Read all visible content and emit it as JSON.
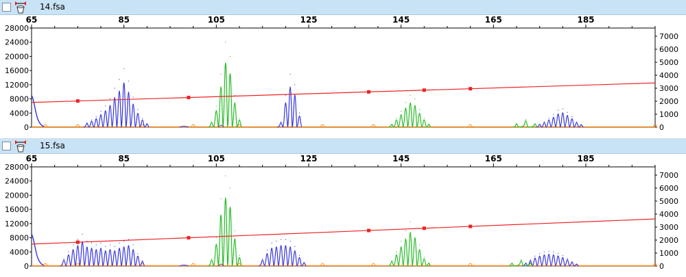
{
  "colors": {
    "blue": "#3333dd",
    "green": "#22bb22",
    "red": "#ee2222",
    "orange": "#ff8c1a",
    "titlebar": "#c9e3f6"
  },
  "icons": {
    "checkbox": "checkbox-icon",
    "tool": "sizing-tool-icon"
  },
  "panels": [
    {
      "filename": "14.fsa",
      "x_ticks": [
        "65",
        "85",
        "105",
        "125",
        "145",
        "165",
        "185"
      ],
      "left_ticks": [
        "28000",
        "24000",
        "20000",
        "16000",
        "12000",
        "8000",
        "4000",
        "0"
      ],
      "right_ticks": [
        "7000",
        "6000",
        "5000",
        "4000",
        "3000",
        "2000",
        "1000",
        "0"
      ]
    },
    {
      "filename": "15.fsa",
      "x_ticks": [
        "65",
        "85",
        "105",
        "125",
        "145",
        "165",
        "185"
      ],
      "left_ticks": [
        "28000",
        "24000",
        "20000",
        "16000",
        "12000",
        "8000",
        "4000",
        "0"
      ],
      "right_ticks": [
        "7000",
        "6000",
        "5000",
        "4000",
        "3000",
        "2000",
        "1000",
        "0"
      ]
    }
  ],
  "chart_data": [
    {
      "type": "line",
      "x_range": [
        65,
        200
      ],
      "y_left_range": [
        0,
        28000
      ],
      "y_right_range": [
        0,
        7000
      ],
      "series": [
        {
          "color": "blue",
          "peaks": [
            {
              "x": 77,
              "h": 1200
            },
            {
              "x": 78,
              "h": 2000
            },
            {
              "x": 79,
              "h": 3000
            },
            {
              "x": 80,
              "h": 4500
            },
            {
              "x": 81,
              "h": 6000
            },
            {
              "x": 82,
              "h": 8000
            },
            {
              "x": 83,
              "h": 11000
            },
            {
              "x": 84,
              "h": 13500
            },
            {
              "x": 85,
              "h": 16500
            },
            {
              "x": 86,
              "h": 13000
            },
            {
              "x": 87,
              "h": 8500
            },
            {
              "x": 88,
              "h": 5000
            },
            {
              "x": 89,
              "h": 2500
            },
            {
              "x": 90,
              "h": 1000
            },
            {
              "x": 119,
              "h": 1500
            },
            {
              "x": 120,
              "h": 9000
            },
            {
              "x": 121,
              "h": 15000
            },
            {
              "x": 122,
              "h": 12000
            },
            {
              "x": 123,
              "h": 4000
            },
            {
              "x": 175,
              "h": 800
            },
            {
              "x": 176,
              "h": 1500
            },
            {
              "x": 177,
              "h": 2500
            },
            {
              "x": 178,
              "h": 3500
            },
            {
              "x": 179,
              "h": 4800
            },
            {
              "x": 180,
              "h": 5200
            },
            {
              "x": 181,
              "h": 4200
            },
            {
              "x": 182,
              "h": 3000
            },
            {
              "x": 183,
              "h": 1500
            },
            {
              "x": 184,
              "h": 700
            }
          ]
        },
        {
          "color": "green",
          "peaks": [
            {
              "x": 104,
              "h": 1500
            },
            {
              "x": 105,
              "h": 6000
            },
            {
              "x": 106,
              "h": 15000
            },
            {
              "x": 107,
              "h": 24000
            },
            {
              "x": 108,
              "h": 20000
            },
            {
              "x": 109,
              "h": 9000
            },
            {
              "x": 110,
              "h": 2500
            },
            {
              "x": 143,
              "h": 800
            },
            {
              "x": 144,
              "h": 2500
            },
            {
              "x": 145,
              "h": 4500
            },
            {
              "x": 146,
              "h": 7000
            },
            {
              "x": 147,
              "h": 9000
            },
            {
              "x": 148,
              "h": 8000
            },
            {
              "x": 149,
              "h": 5000
            },
            {
              "x": 150,
              "h": 2500
            },
            {
              "x": 151,
              "h": 800
            },
            {
              "x": 170,
              "h": 1000
            },
            {
              "x": 172,
              "h": 2200
            },
            {
              "x": 174,
              "h": 1000
            }
          ]
        },
        {
          "color": "red",
          "line_start": 7000,
          "line_end": 12500,
          "markers": [
            75,
            99,
            138,
            150,
            160
          ]
        }
      ]
    },
    {
      "type": "line",
      "x_range": [
        65,
        200
      ],
      "y_left_range": [
        0,
        28000
      ],
      "y_right_range": [
        0,
        7000
      ],
      "series": [
        {
          "color": "blue",
          "peaks": [
            {
              "x": 72,
              "h": 2000
            },
            {
              "x": 73,
              "h": 4000
            },
            {
              "x": 74,
              "h": 6000
            },
            {
              "x": 75,
              "h": 7500
            },
            {
              "x": 76,
              "h": 9000
            },
            {
              "x": 77,
              "h": 7000
            },
            {
              "x": 78,
              "h": 6500
            },
            {
              "x": 79,
              "h": 6000
            },
            {
              "x": 80,
              "h": 6500
            },
            {
              "x": 81,
              "h": 5500
            },
            {
              "x": 82,
              "h": 6000
            },
            {
              "x": 83,
              "h": 5500
            },
            {
              "x": 84,
              "h": 6500
            },
            {
              "x": 85,
              "h": 7000
            },
            {
              "x": 86,
              "h": 7500
            },
            {
              "x": 87,
              "h": 6000
            },
            {
              "x": 88,
              "h": 3500
            },
            {
              "x": 89,
              "h": 1500
            },
            {
              "x": 115,
              "h": 2000
            },
            {
              "x": 116,
              "h": 4500
            },
            {
              "x": 117,
              "h": 6500
            },
            {
              "x": 118,
              "h": 7000
            },
            {
              "x": 119,
              "h": 7500
            },
            {
              "x": 120,
              "h": 7500
            },
            {
              "x": 121,
              "h": 7000
            },
            {
              "x": 122,
              "h": 5500
            },
            {
              "x": 123,
              "h": 3000
            },
            {
              "x": 124,
              "h": 1000
            },
            {
              "x": 172,
              "h": 800
            },
            {
              "x": 173,
              "h": 1800
            },
            {
              "x": 174,
              "h": 2800
            },
            {
              "x": 175,
              "h": 3500
            },
            {
              "x": 176,
              "h": 4000
            },
            {
              "x": 177,
              "h": 4200
            },
            {
              "x": 178,
              "h": 4000
            },
            {
              "x": 179,
              "h": 3600
            },
            {
              "x": 180,
              "h": 3000
            },
            {
              "x": 181,
              "h": 2200
            },
            {
              "x": 182,
              "h": 1200
            },
            {
              "x": 183,
              "h": 500
            }
          ]
        },
        {
          "color": "green",
          "peaks": [
            {
              "x": 104,
              "h": 2000
            },
            {
              "x": 105,
              "h": 8000
            },
            {
              "x": 106,
              "h": 19000
            },
            {
              "x": 107,
              "h": 25500
            },
            {
              "x": 108,
              "h": 22000
            },
            {
              "x": 109,
              "h": 10000
            },
            {
              "x": 110,
              "h": 3000
            },
            {
              "x": 143,
              "h": 1500
            },
            {
              "x": 144,
              "h": 4000
            },
            {
              "x": 145,
              "h": 7000
            },
            {
              "x": 146,
              "h": 10000
            },
            {
              "x": 147,
              "h": 12500
            },
            {
              "x": 148,
              "h": 10500
            },
            {
              "x": 149,
              "h": 6000
            },
            {
              "x": 150,
              "h": 2500
            },
            {
              "x": 151,
              "h": 800
            },
            {
              "x": 169,
              "h": 800
            },
            {
              "x": 171,
              "h": 1800
            },
            {
              "x": 173,
              "h": 900
            }
          ]
        },
        {
          "color": "red",
          "line_start": 6200,
          "line_end": 13300,
          "markers": [
            75,
            99,
            138,
            150,
            160
          ]
        }
      ]
    }
  ]
}
